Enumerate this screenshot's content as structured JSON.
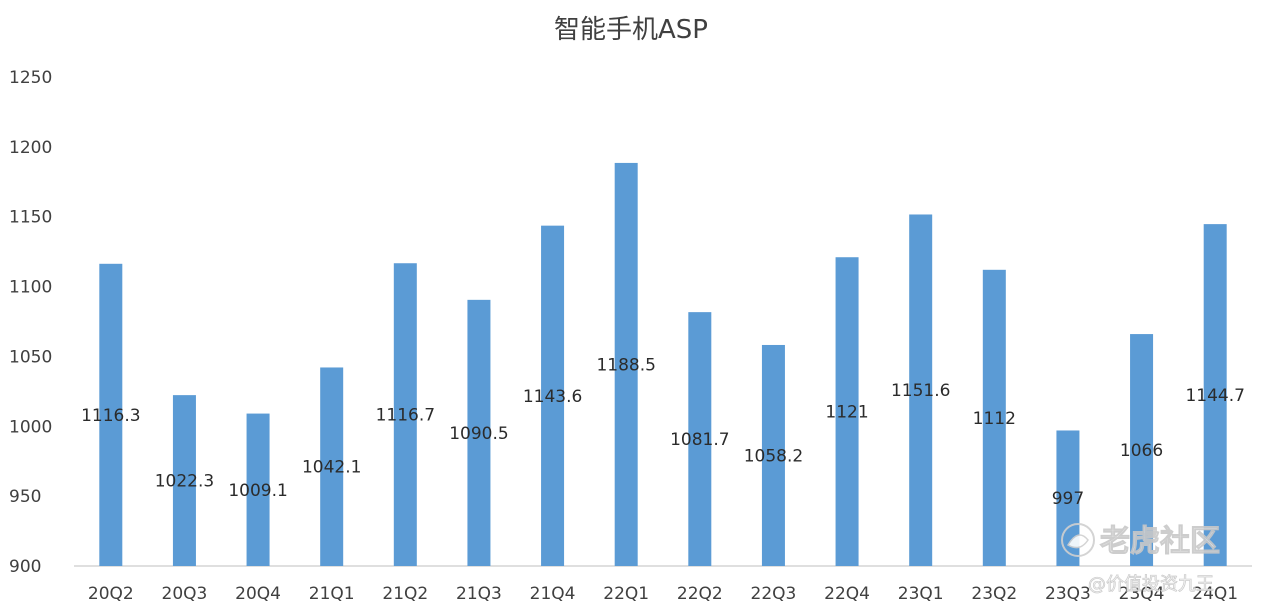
{
  "chart_data": {
    "type": "bar",
    "title": "智能手机ASP",
    "xlabel": "",
    "ylabel": "",
    "ylim": [
      900,
      1250
    ],
    "yticks": [
      900,
      950,
      1000,
      1050,
      1100,
      1150,
      1200,
      1250
    ],
    "grid": false,
    "legend": "none",
    "categories": [
      "20Q2",
      "20Q3",
      "20Q4",
      "21Q1",
      "21Q2",
      "21Q3",
      "21Q4",
      "22Q1",
      "22Q2",
      "22Q3",
      "22Q4",
      "23Q1",
      "23Q2",
      "23Q3",
      "23Q4",
      "24Q1"
    ],
    "values": [
      1116.3,
      1022.3,
      1009.1,
      1042.1,
      1116.7,
      1090.5,
      1143.6,
      1188.5,
      1081.7,
      1058.2,
      1121,
      1151.6,
      1112,
      997,
      1066,
      1144.7
    ],
    "data_labels": [
      "1116.3",
      "1022.3",
      "1009.1",
      "1042.1",
      "1116.7",
      "1090.5",
      "1143.6",
      "1188.5",
      "1081.7",
      "1058.2",
      "1121",
      "1151.6",
      "1112",
      "997",
      "1066",
      "1144.7"
    ],
    "bar_color": "#5b9bd5"
  },
  "watermark": {
    "text": "老虎社区",
    "subtext": "@价值投资九王"
  }
}
